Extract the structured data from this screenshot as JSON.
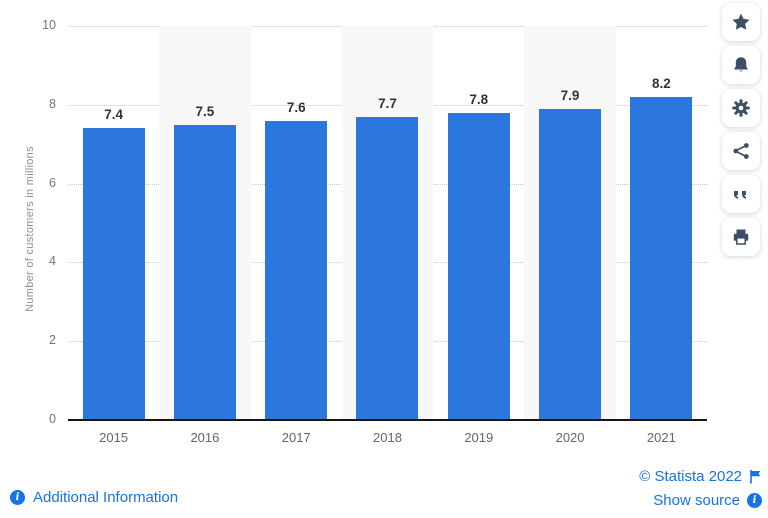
{
  "chart_data": {
    "type": "bar",
    "categories": [
      "2015",
      "2016",
      "2017",
      "2018",
      "2019",
      "2020",
      "2021"
    ],
    "values": [
      7.4,
      7.5,
      7.6,
      7.7,
      7.8,
      7.9,
      8.2
    ],
    "value_labels": [
      "7.4",
      "7.5",
      "7.6",
      "7.7",
      "7.8",
      "7.9",
      "8.2"
    ],
    "title": "",
    "xlabel": "",
    "ylabel": "Number of customers in millions",
    "ylim": [
      0,
      10
    ],
    "yticks": [
      0,
      2,
      4,
      6,
      8,
      10
    ],
    "grid": "horizontal-dotted",
    "legend": "none",
    "bar_color": "#2b77de",
    "stripe_color": "#f8f8f9"
  },
  "toolbar": {
    "buttons": [
      {
        "name": "favorite",
        "icon": "star-icon"
      },
      {
        "name": "notifications",
        "icon": "bell-icon"
      },
      {
        "name": "settings",
        "icon": "gear-icon"
      },
      {
        "name": "share",
        "icon": "share-icon"
      },
      {
        "name": "cite",
        "icon": "quote-icon"
      },
      {
        "name": "print",
        "icon": "printer-icon"
      }
    ]
  },
  "footer": {
    "additional_information": "Additional Information",
    "copyright": "© Statista 2022",
    "show_source": "Show source",
    "info_glyph": "i"
  },
  "colors": {
    "link_blue": "#1673e6",
    "toolbar_icon": "#3d4f66",
    "axis_text": "#767676",
    "value_text": "#333333"
  }
}
